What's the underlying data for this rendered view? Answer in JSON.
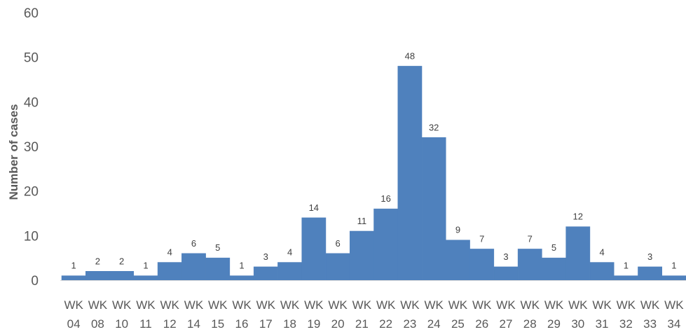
{
  "chart_data": {
    "type": "bar",
    "categories": [
      [
        "WK",
        "04"
      ],
      [
        "WK",
        "08"
      ],
      [
        "WK",
        "10"
      ],
      [
        "WK",
        "11"
      ],
      [
        "WK",
        "12"
      ],
      [
        "WK",
        "14"
      ],
      [
        "WK",
        "15"
      ],
      [
        "WK",
        "16"
      ],
      [
        "WK",
        "17"
      ],
      [
        "WK",
        "18"
      ],
      [
        "WK",
        "19"
      ],
      [
        "WK",
        "20"
      ],
      [
        "WK",
        "21"
      ],
      [
        "WK",
        "22"
      ],
      [
        "WK",
        "23"
      ],
      [
        "WK",
        "24"
      ],
      [
        "WK",
        "25"
      ],
      [
        "WK",
        "26"
      ],
      [
        "WK",
        "27"
      ],
      [
        "WK",
        "28"
      ],
      [
        "WK",
        "29"
      ],
      [
        "WK",
        "30"
      ],
      [
        "WK",
        "31"
      ],
      [
        "WK",
        "32"
      ],
      [
        "WK",
        "33"
      ],
      [
        "WK",
        "34"
      ]
    ],
    "values": [
      1,
      2,
      2,
      1,
      4,
      6,
      5,
      1,
      3,
      4,
      14,
      6,
      11,
      16,
      48,
      32,
      9,
      7,
      3,
      7,
      5,
      12,
      4,
      1,
      3,
      1
    ],
    "ylabel": "Number of cases",
    "ylim": [
      0,
      60
    ],
    "yticks": [
      0,
      10,
      20,
      30,
      40,
      50,
      60
    ],
    "grid": false,
    "bar_color": "#4F81BD",
    "axis_color": "#D9D9D9"
  }
}
